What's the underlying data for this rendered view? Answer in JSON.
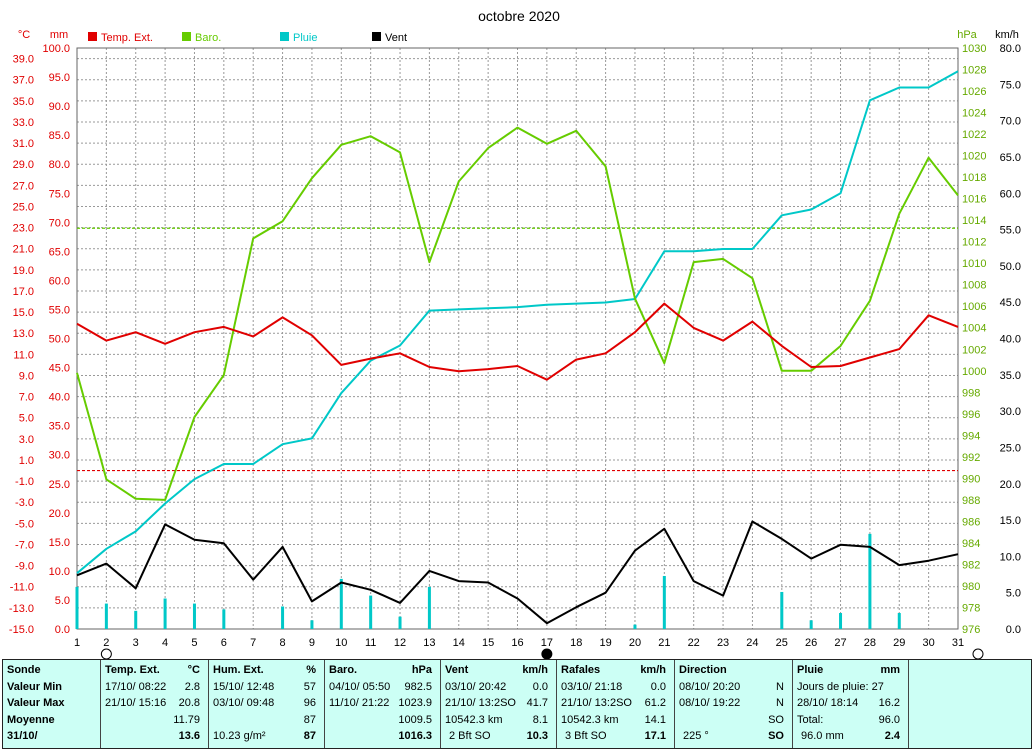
{
  "chart_data": {
    "type": "line",
    "title": "octobre 2020",
    "x": [
      1,
      2,
      3,
      4,
      5,
      6,
      7,
      8,
      9,
      10,
      11,
      12,
      13,
      14,
      15,
      16,
      17,
      18,
      19,
      20,
      21,
      22,
      23,
      24,
      25,
      26,
      27,
      28,
      29,
      30,
      31
    ],
    "x_ticks": [
      "1",
      "2",
      "3",
      "4",
      "5",
      "6",
      "7",
      "8",
      "9",
      "10",
      "11",
      "12",
      "13",
      "14",
      "15",
      "16",
      "17",
      "18",
      "19",
      "20",
      "21",
      "22",
      "23",
      "24",
      "25",
      "26",
      "27",
      "28",
      "29",
      "30",
      "31"
    ],
    "axes": {
      "temp": {
        "unit": "°C",
        "range": [
          -15,
          40
        ],
        "ticks": [
          "39.0",
          "37.0",
          "35.0",
          "33.0",
          "31.0",
          "29.0",
          "27.0",
          "25.0",
          "23.0",
          "21.0",
          "19.0",
          "17.0",
          "15.0",
          "13.0",
          "11.0",
          "9.0",
          "7.0",
          "5.0",
          "3.0",
          "1.0",
          "-1.0",
          "-3.0",
          "-5.0",
          "-7.0",
          "-9.0",
          "-11.0",
          "-13.0",
          "-15.0"
        ]
      },
      "rain": {
        "unit": "mm",
        "range": [
          0,
          100
        ],
        "ticks": [
          "100.0",
          "95.0",
          "90.0",
          "85.0",
          "80.0",
          "75.0",
          "70.0",
          "65.0",
          "60.0",
          "55.0",
          "50.0",
          "45.0",
          "40.0",
          "35.0",
          "30.0",
          "25.0",
          "20.0",
          "15.0",
          "10.0",
          "5.0",
          "0.0"
        ]
      },
      "baro": {
        "unit": "hPa",
        "range": [
          976,
          1030
        ],
        "ticks": [
          "1030",
          "1028",
          "1026",
          "1024",
          "1022",
          "1020",
          "1018",
          "1016",
          "1014",
          "1012",
          "1010",
          "1008",
          "1006",
          "1004",
          "1002",
          "1000",
          "998",
          "996",
          "994",
          "992",
          "990",
          "988",
          "986",
          "984",
          "982",
          "980",
          "978",
          "976"
        ]
      },
      "wind": {
        "unit": "km/h",
        "range": [
          0,
          80
        ],
        "ticks": [
          "80.0",
          "75.0",
          "70.0",
          "65.0",
          "60.0",
          "55.0",
          "50.0",
          "45.0",
          "40.0",
          "35.0",
          "30.0",
          "25.0",
          "20.0",
          "15.0",
          "10.0",
          "5.0",
          "0.0"
        ]
      }
    },
    "legend": [
      "Temp. Ext.",
      "Baro.",
      "Pluie",
      "Vent"
    ],
    "colors": {
      "temp": "#e00000",
      "baro": "#66cc00",
      "rain": "#00c8c8",
      "wind": "#000000",
      "axis_left": "#e00000",
      "axis_right": "#66aa00"
    },
    "series": [
      {
        "name": "Temp. Ext.",
        "axis": "temp",
        "values": [
          13.9,
          12.3,
          13.1,
          12.0,
          13.1,
          13.6,
          12.7,
          14.5,
          12.8,
          10.0,
          10.6,
          11.1,
          9.8,
          9.4,
          9.6,
          9.9,
          8.6,
          10.5,
          11.1,
          13.1,
          15.8,
          13.5,
          12.3,
          14.1,
          11.8,
          9.8,
          9.9,
          10.7,
          11.5,
          14.7,
          13.6
        ]
      },
      {
        "name": "Baro.",
        "axis": "baro",
        "values": [
          999.8,
          989.9,
          988.1,
          988.0,
          995.7,
          999.6,
          1012.3,
          1013.9,
          1017.9,
          1021.0,
          1021.8,
          1020.3,
          1010.1,
          1017.6,
          1020.7,
          1022.6,
          1021.1,
          1022.3,
          1019.0,
          1006.7,
          1000.7,
          1010.1,
          1010.4,
          1008.6,
          1000.0,
          1000.0,
          1002.3,
          1006.5,
          1014.6,
          1019.8,
          1016.3
        ]
      },
      {
        "name": "Pluie",
        "axis": "rain",
        "values": [
          9.6,
          13.8,
          16.8,
          21.6,
          25.8,
          28.4,
          28.4,
          31.8,
          32.8,
          40.6,
          46.2,
          48.8,
          54.8,
          55.0,
          55.2,
          55.4,
          55.8,
          56.0,
          56.2,
          56.8,
          65.0,
          65.0,
          65.4,
          65.4,
          71.2,
          72.2,
          75.0,
          91.0,
          93.2,
          93.2,
          96.0
        ]
      },
      {
        "name": "Vent",
        "axis": "wind",
        "values": [
          7.4,
          9.0,
          5.6,
          14.4,
          12.3,
          11.8,
          6.8,
          11.3,
          3.8,
          6.4,
          5.4,
          3.6,
          8.0,
          6.6,
          6.4,
          4.2,
          0.8,
          3.0,
          5.0,
          10.8,
          13.8,
          6.6,
          4.6,
          14.8,
          12.4,
          9.7,
          11.6,
          11.3,
          8.8,
          9.4,
          10.3
        ]
      }
    ],
    "rain_bars": {
      "axis": "wind",
      "values": [
        5.8,
        3.5,
        2.5,
        4.2,
        3.5,
        2.7,
        0,
        3.1,
        1.2,
        6.9,
        4.6,
        1.7,
        5.8,
        0,
        0,
        0,
        0,
        0,
        0,
        0.6,
        7.3,
        0,
        0,
        0,
        5.1,
        1.2,
        2.2,
        13.1,
        2.2,
        0,
        0
      ]
    },
    "reference_lines": [
      {
        "axis": "baro",
        "value": 1013.25,
        "color": "#66cc00"
      },
      {
        "axis": "temp",
        "value": 0,
        "color": "#e00000"
      }
    ],
    "grid": true,
    "legend_position": "top-left"
  },
  "axis_headers": {
    "temp_unit": "°C",
    "rain_unit": "mm",
    "baro_unit": "hPa",
    "wind_unit": "km/h"
  },
  "summary": {
    "row_labels": [
      "Sonde",
      "Valeur Min",
      "Valeur Max",
      "Moyenne",
      "31/10/"
    ],
    "temp": {
      "title": "Temp. Ext.",
      "unit": "°C",
      "min_date": "17/10/",
      "min_time": "08:22",
      "min_val": "2.8",
      "max_date": "21/10/",
      "max_time": "15:16",
      "max_val": "20.8",
      "avg": "11.79",
      "today": "13.6"
    },
    "hum": {
      "title": "Hum. Ext.",
      "unit": "%",
      "min_date": "15/10/",
      "min_time": "12:48",
      "min_val": "57",
      "max_date": "03/10/",
      "max_time": "09:48",
      "max_val": "96",
      "avg": "87",
      "abs": "10.23 g/m²",
      "today": "87"
    },
    "baro": {
      "title": "Baro.",
      "unit": "hPa",
      "min_date": "04/10/",
      "min_time": "05:50",
      "min_val": "982.5",
      "max_date": "11/10/",
      "max_time": "21:22",
      "max_val": "1023.9",
      "avg": "1009.5",
      "today": "1016.3"
    },
    "wind": {
      "title": "Vent",
      "unit": "km/h",
      "min_date": "03/10/",
      "min_time": "20:42",
      "min_val": "0.0",
      "max_date": "21/10/",
      "max_time": "13:2",
      "max_dir": "SO",
      "max_val": "41.7",
      "dist": "10542.3 km",
      "avg": "8.1",
      "today_bft": "2 Bft SO",
      "today": "10.3"
    },
    "gust": {
      "title": "Rafales",
      "unit": "km/h",
      "min_date": "03/10/",
      "min_time": "21:18",
      "min_val": "0.0",
      "max_date": "21/10/",
      "max_time": "13:2",
      "max_dir": "SO",
      "max_val": "61.2",
      "dist": "10542.3 km",
      "avg": "14.1",
      "today_bft": "3 Bft SO",
      "today": "17.1"
    },
    "dir": {
      "title": "Direction",
      "min_date": "08/10/",
      "min_time": "20:20",
      "min_val": "N",
      "max_date": "08/10/",
      "max_time": "19:22",
      "max_val": "N",
      "avg": "SO",
      "today_deg": "225 °",
      "today": "SO"
    },
    "rain": {
      "title": "Pluie",
      "unit": "mm",
      "days_label": "Jours de pluie:",
      "days": "27",
      "max_date": "28/10/",
      "max_time": "18:14",
      "max_val": "16.2",
      "total_label": "Total:",
      "total": "96.0",
      "today_total": "96.0 mm",
      "today": "2.4"
    }
  }
}
